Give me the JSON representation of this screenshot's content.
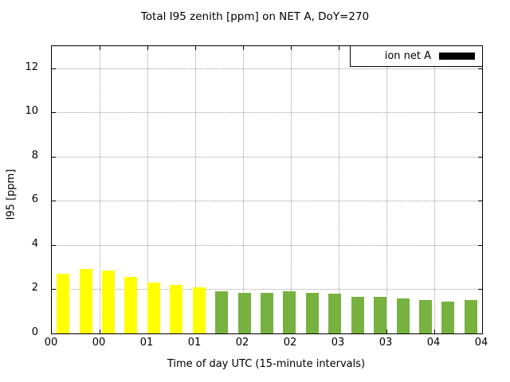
{
  "chart_data": {
    "type": "bar",
    "title": "Total I95 zenith [ppm] on NET A, DoY=270",
    "xlabel": "Time of day UTC (15-minute intervals)",
    "ylabel": "I95 [ppm]",
    "ylim": [
      0,
      13
    ],
    "yticks": [
      0,
      2,
      4,
      6,
      8,
      10,
      12
    ],
    "xtick_labels": [
      "00",
      "00",
      "01",
      "01",
      "02",
      "02",
      "03",
      "03",
      "04",
      "04"
    ],
    "grid": true,
    "legend_position": "top-right",
    "legend": [
      {
        "name": "ion net A",
        "color": "#000000"
      }
    ],
    "colors": {
      "early": "#ffff00",
      "late": "#77b13f"
    },
    "bars": [
      {
        "time": "00:00",
        "value": 2.7,
        "color": "#ffff00"
      },
      {
        "time": "00:15",
        "value": 2.9,
        "color": "#ffff00"
      },
      {
        "time": "00:30",
        "value": 2.85,
        "color": "#ffff00"
      },
      {
        "time": "00:45",
        "value": 2.55,
        "color": "#ffff00"
      },
      {
        "time": "01:00",
        "value": 2.3,
        "color": "#ffff00"
      },
      {
        "time": "01:15",
        "value": 2.2,
        "color": "#ffff00"
      },
      {
        "time": "01:30",
        "value": 2.1,
        "color": "#ffff00"
      },
      {
        "time": "01:45",
        "value": 1.9,
        "color": "#77b13f"
      },
      {
        "time": "02:00",
        "value": 1.85,
        "color": "#77b13f"
      },
      {
        "time": "02:15",
        "value": 1.85,
        "color": "#77b13f"
      },
      {
        "time": "02:30",
        "value": 1.9,
        "color": "#77b13f"
      },
      {
        "time": "02:45",
        "value": 1.85,
        "color": "#77b13f"
      },
      {
        "time": "03:00",
        "value": 1.8,
        "color": "#77b13f"
      },
      {
        "time": "03:15",
        "value": 1.65,
        "color": "#77b13f"
      },
      {
        "time": "03:30",
        "value": 1.65,
        "color": "#77b13f"
      },
      {
        "time": "03:45",
        "value": 1.6,
        "color": "#77b13f"
      },
      {
        "time": "04:00",
        "value": 1.5,
        "color": "#77b13f"
      },
      {
        "time": "04:15",
        "value": 1.45,
        "color": "#77b13f"
      },
      {
        "time": "04:30",
        "value": 1.5,
        "color": "#77b13f"
      }
    ]
  }
}
